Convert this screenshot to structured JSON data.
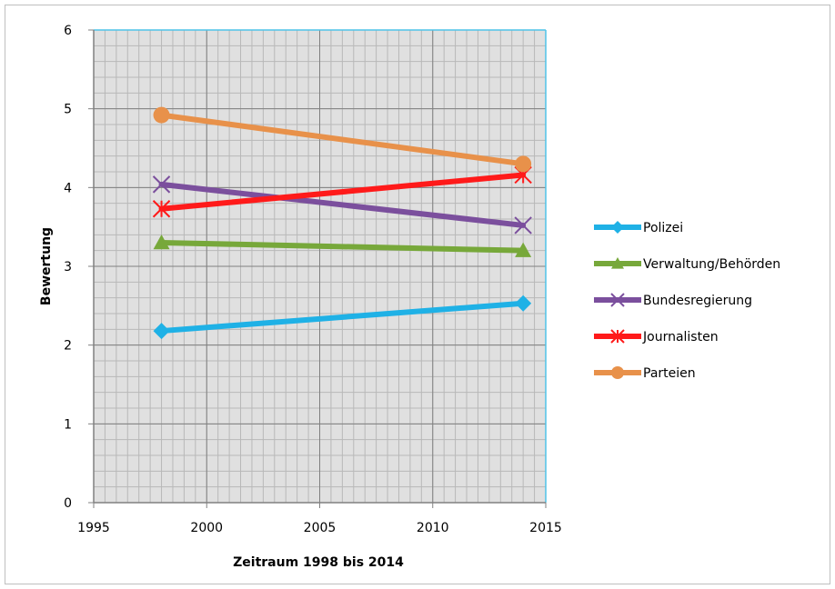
{
  "chart_data": {
    "type": "line",
    "title": "",
    "xlabel": "Zeitraum 1998 bis 2014",
    "ylabel": "Bewertung",
    "xlim": [
      1995,
      2015
    ],
    "ylim": [
      0,
      6
    ],
    "xticks": [
      "1995",
      "2000",
      "2005",
      "2010",
      "2015"
    ],
    "yticks": [
      "0",
      "1",
      "2",
      "3",
      "4",
      "5",
      "6"
    ],
    "grid": true,
    "plot_background": "#e0e0e0",
    "legend_position": "right",
    "series": [
      {
        "name": "Polizei",
        "x": [
          1998,
          2014
        ],
        "y": [
          2.18,
          2.53
        ],
        "color": "#1fb1e6",
        "marker": "diamond"
      },
      {
        "name": "Verwaltung/Behörden",
        "x": [
          1998,
          2014
        ],
        "y": [
          3.3,
          3.2
        ],
        "color": "#77a83a",
        "marker": "triangle"
      },
      {
        "name": "Bundesregierung",
        "x": [
          1998,
          2014
        ],
        "y": [
          4.04,
          3.52
        ],
        "color": "#7b4f9d",
        "marker": "x"
      },
      {
        "name": "Journalisten",
        "x": [
          1998,
          2014
        ],
        "y": [
          3.73,
          4.16
        ],
        "color": "#ff1a1a",
        "marker": "star"
      },
      {
        "name": "Parteien",
        "x": [
          1998,
          2014
        ],
        "y": [
          4.92,
          4.3
        ],
        "color": "#e8914a",
        "marker": "circle"
      }
    ]
  }
}
